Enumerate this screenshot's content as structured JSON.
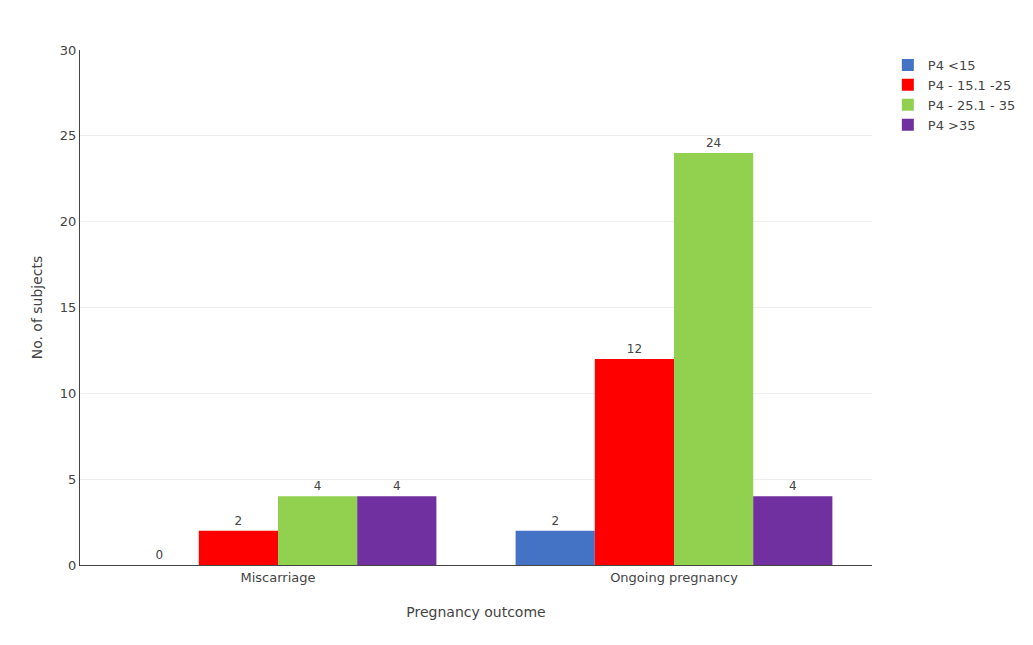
{
  "chart_data": {
    "type": "bar",
    "categories": [
      "Miscarriage",
      "Ongoing pregnancy"
    ],
    "series": [
      {
        "name": "P4 <15",
        "color": "#4472C4",
        "values": [
          0,
          2
        ]
      },
      {
        "name": "P4 - 15.1 -25",
        "color": "#FF0000",
        "values": [
          2,
          12
        ]
      },
      {
        "name": "P4 - 25.1 - 35",
        "color": "#92D050",
        "values": [
          4,
          24
        ]
      },
      {
        "name": "P4 >35",
        "color": "#7030A0",
        "values": [
          4,
          4
        ]
      }
    ],
    "xlabel": "Pregnancy outcome",
    "ylabel": "No. of subjects",
    "ylim": [
      0,
      30
    ],
    "yticks": [
      0,
      5,
      10,
      15,
      20,
      25,
      30
    ],
    "grid": true,
    "legend": "right",
    "data_labels": true
  }
}
